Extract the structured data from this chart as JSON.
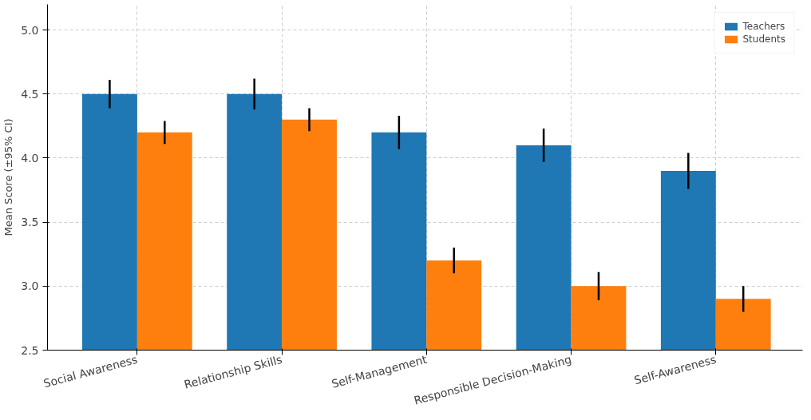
{
  "chart_data": {
    "type": "bar",
    "ylabel": "Mean Score (±95% CI)",
    "categories": [
      "Social Awareness",
      "Relationship Skills",
      "Self-Management",
      "Responsible Decision-Making",
      "Self-Awareness"
    ],
    "series": [
      {
        "name": "Teachers",
        "color": "#1f77b4",
        "values": [
          4.5,
          4.5,
          4.2,
          4.1,
          3.9
        ],
        "errors": [
          0.11,
          0.12,
          0.13,
          0.13,
          0.14
        ]
      },
      {
        "name": "Students",
        "color": "#ff7f0e",
        "values": [
          4.2,
          4.3,
          3.2,
          3.0,
          2.9
        ],
        "errors": [
          0.09,
          0.09,
          0.1,
          0.11,
          0.1
        ]
      }
    ],
    "ylim": [
      2.5,
      5.2
    ],
    "yticks": [
      2.5,
      {
        "value": 3,
        "label": "3.0"
      },
      3.5,
      {
        "value": 4,
        "label": "4.0"
      },
      4.5,
      {
        "value": 5,
        "label": "5.0"
      }
    ],
    "grid": true,
    "legend": "top right"
  }
}
